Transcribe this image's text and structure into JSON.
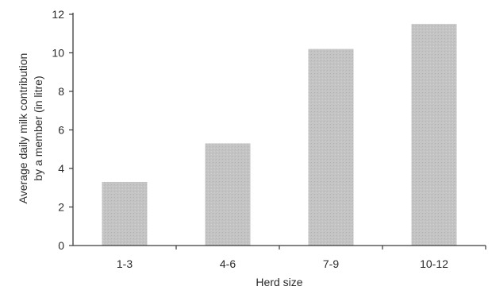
{
  "chart_data": {
    "type": "bar",
    "categories": [
      "1-3",
      "4-6",
      "7-9",
      "10-12"
    ],
    "values": [
      3.3,
      5.3,
      10.2,
      11.5
    ],
    "xlabel": "Herd size",
    "ylabel_lines": [
      "Average daily milk contribution",
      "by a member (in litre)"
    ],
    "ylim": [
      0,
      12
    ],
    "yticks": [
      0,
      2,
      4,
      6,
      8,
      10,
      12
    ],
    "grid": false,
    "legend": "none",
    "bar_color": "#c4c4c4",
    "axis_color": "#3a3a3a"
  }
}
